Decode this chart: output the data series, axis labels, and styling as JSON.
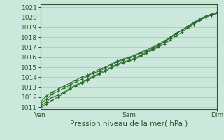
{
  "title": "",
  "xlabel": "Pression niveau de la mer( hPa )",
  "ylabel": "",
  "xlim": [
    0,
    48
  ],
  "ylim": [
    1011,
    1021
  ],
  "yticks": [
    1011,
    1012,
    1013,
    1014,
    1015,
    1016,
    1017,
    1018,
    1019,
    1020,
    1021
  ],
  "xtick_positions": [
    0,
    24,
    48
  ],
  "xtick_labels": [
    "Ven",
    "Sam",
    "Dim"
  ],
  "bg_color": "#cce8dd",
  "grid_color": "#99ccbb",
  "line_color": "#2d6e2d",
  "marker_color": "#2d6e2d",
  "series": [
    [
      1011.1,
      1011.5,
      1012.0,
      1012.2,
      1012.5,
      1012.9,
      1013.2,
      1013.5,
      1013.8,
      1014.1,
      1014.4,
      1014.7,
      1015.0,
      1015.3,
      1015.5,
      1015.7,
      1015.9,
      1016.2,
      1016.5,
      1016.8,
      1017.1,
      1017.5,
      1017.9,
      1018.3,
      1018.7,
      1019.1,
      1019.5,
      1019.8,
      1020.1,
      1020.3,
      1020.5
    ],
    [
      1011.5,
      1012.1,
      1012.5,
      1012.8,
      1013.1,
      1013.4,
      1013.7,
      1014.0,
      1014.2,
      1014.5,
      1014.8,
      1015.0,
      1015.3,
      1015.6,
      1015.8,
      1016.0,
      1016.2,
      1016.5,
      1016.7,
      1017.0,
      1017.3,
      1017.6,
      1017.9,
      1018.3,
      1018.7,
      1019.0,
      1019.3,
      1019.7,
      1020.0,
      1020.2,
      1020.4
    ],
    [
      1011.3,
      1011.8,
      1012.3,
      1012.6,
      1012.9,
      1013.2,
      1013.5,
      1013.8,
      1014.1,
      1014.4,
      1014.6,
      1014.9,
      1015.2,
      1015.5,
      1015.7,
      1015.9,
      1016.1,
      1016.4,
      1016.6,
      1016.9,
      1017.2,
      1017.6,
      1018.0,
      1018.4,
      1018.7,
      1019.1,
      1019.4,
      1019.8,
      1020.1,
      1020.3,
      1020.5
    ],
    [
      1011.0,
      1011.3,
      1011.7,
      1012.0,
      1012.4,
      1012.8,
      1013.1,
      1013.4,
      1013.7,
      1014.0,
      1014.3,
      1014.6,
      1014.9,
      1015.2,
      1015.4,
      1015.6,
      1015.8,
      1016.1,
      1016.4,
      1016.7,
      1017.0,
      1017.3,
      1017.7,
      1018.1,
      1018.5,
      1018.9,
      1019.3,
      1019.7,
      1020.0,
      1020.2,
      1020.4
    ]
  ],
  "figsize": [
    3.2,
    2.0
  ],
  "dpi": 100,
  "xlabel_fontsize": 7.5,
  "tick_fontsize": 6.5
}
